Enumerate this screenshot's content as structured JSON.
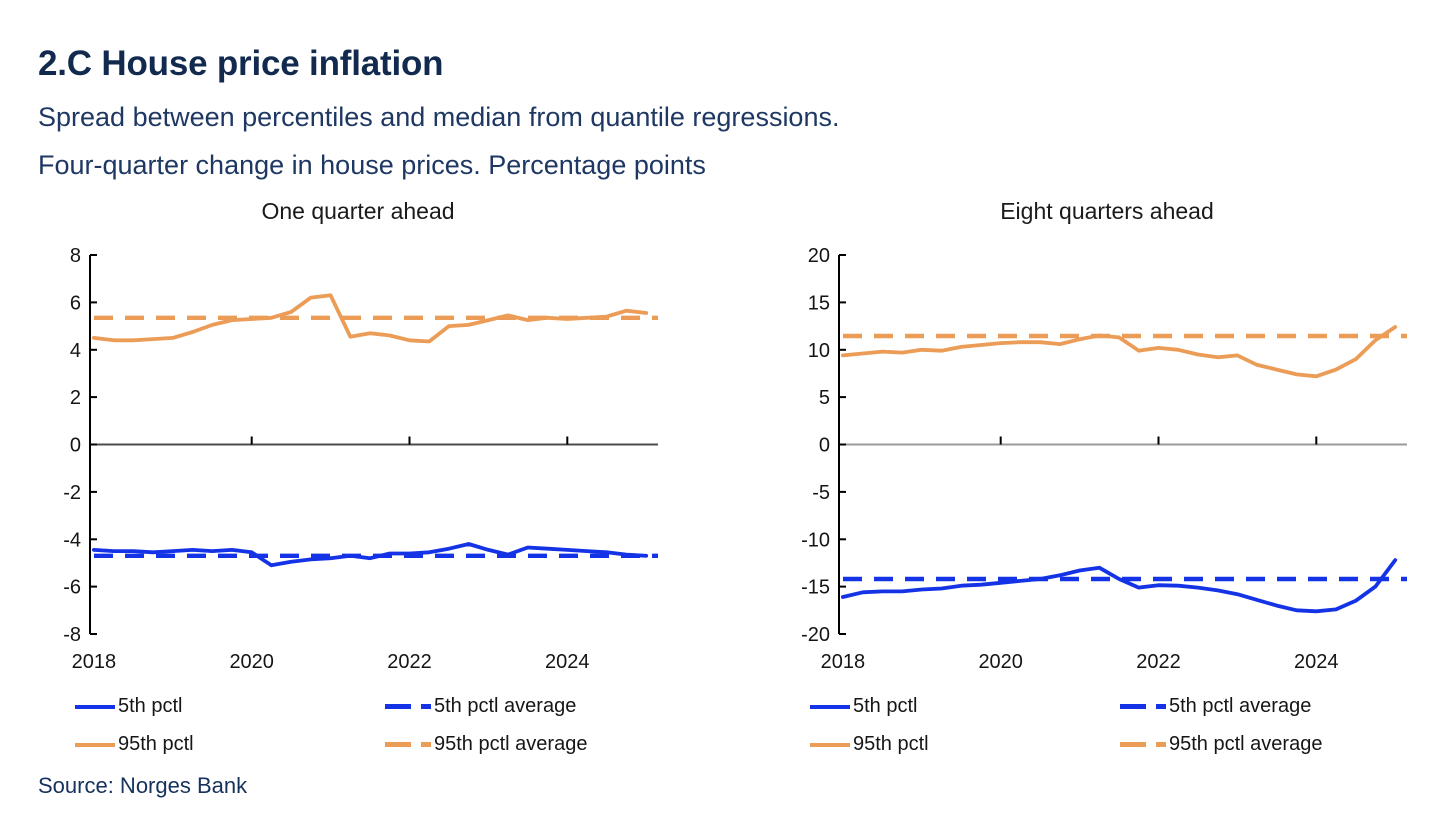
{
  "page": {
    "title": "2.C House price inflation",
    "subtitle1": "Spread between percentiles and median from quantile regressions.",
    "subtitle2": "Four-quarter change in house prices. Percentage points",
    "source": "Source: Norges Bank"
  },
  "colors": {
    "blue": "#1433e6",
    "orange": "#eb9c57",
    "axis": "#000000",
    "tick_text": "#151515"
  },
  "chart_data": [
    {
      "type": "line",
      "title": "One quarter ahead",
      "x_start": 2018,
      "x_step": 0.25,
      "xlim": [
        2017.95,
        2025.15
      ],
      "ylim": [
        -8,
        8
      ],
      "y_ticks": [
        8,
        6,
        4,
        2,
        0,
        -2,
        -4,
        -6,
        -8
      ],
      "y_tick_labels": [
        "8",
        "6",
        "4",
        "2",
        "0",
        "-2",
        "-4",
        "-6",
        "-8"
      ],
      "x_tick_positions": [
        2018,
        2020,
        2022,
        2024
      ],
      "x_tick_labels": [
        "2018",
        "2020",
        "2022",
        "2024"
      ],
      "x_tick_marks": [
        2020,
        2022,
        2024
      ],
      "zero_line": "#4c4c4c",
      "grid": false,
      "legend_position": "bottom",
      "series": [
        {
          "name": "5th pctl",
          "style": "solid",
          "color": "blue",
          "values": [
            -4.45,
            -4.5,
            -4.5,
            -4.55,
            -4.5,
            -4.45,
            -4.5,
            -4.45,
            -4.55,
            -5.1,
            -4.95,
            -4.85,
            -4.8,
            -4.7,
            -4.8,
            -4.6,
            -4.6,
            -4.55,
            -4.4,
            -4.2,
            -4.45,
            -4.65,
            -4.35,
            -4.4,
            -4.45,
            -4.5,
            -4.55,
            -4.65,
            -4.7
          ]
        },
        {
          "name": "5th pctl average",
          "style": "dashed",
          "color": "blue",
          "value": -4.7
        },
        {
          "name": "95th pctl",
          "style": "solid",
          "color": "orange",
          "values": [
            4.5,
            4.4,
            4.4,
            4.45,
            4.5,
            4.75,
            5.05,
            5.25,
            5.3,
            5.35,
            5.6,
            6.2,
            6.3,
            4.55,
            4.7,
            4.6,
            4.4,
            4.35,
            5.0,
            5.05,
            5.25,
            5.45,
            5.25,
            5.35,
            5.3,
            5.35,
            5.4,
            5.65,
            5.55
          ]
        },
        {
          "name": "95th pctl average",
          "style": "dashed",
          "color": "orange",
          "value": 5.35
        }
      ]
    },
    {
      "type": "line",
      "title": "Eight quarters ahead",
      "x_start": 2018,
      "x_step": 0.25,
      "xlim": [
        2017.95,
        2025.15
      ],
      "ylim": [
        -20,
        20
      ],
      "y_ticks": [
        20,
        15,
        10,
        5,
        0,
        -5,
        -10,
        -15,
        -20
      ],
      "y_tick_labels": [
        "20",
        "15",
        "10",
        "5",
        "0",
        "-5",
        "-10",
        "-15",
        "-20"
      ],
      "x_tick_positions": [
        2018,
        2020,
        2022,
        2024
      ],
      "x_tick_labels": [
        "2018",
        "2020",
        "2022",
        "2024"
      ],
      "x_tick_marks": [
        2020,
        2022,
        2024
      ],
      "zero_line": "#9a9a9a",
      "grid": false,
      "legend_position": "bottom",
      "series": [
        {
          "name": "5th pctl",
          "style": "solid",
          "color": "blue",
          "values": [
            -16.1,
            -15.6,
            -15.5,
            -15.5,
            -15.3,
            -15.2,
            -14.9,
            -14.8,
            -14.6,
            -14.4,
            -14.2,
            -13.8,
            -13.3,
            -13.0,
            -14.2,
            -15.1,
            -14.85,
            -14.9,
            -15.1,
            -15.4,
            -15.8,
            -16.4,
            -17.0,
            -17.5,
            -17.6,
            -17.4,
            -16.5,
            -15.0,
            -12.2
          ]
        },
        {
          "name": "5th pctl average",
          "style": "dashed",
          "color": "blue",
          "value": -14.2
        },
        {
          "name": "95th pctl",
          "style": "solid",
          "color": "orange",
          "values": [
            9.4,
            9.6,
            9.8,
            9.7,
            10.0,
            9.9,
            10.3,
            10.5,
            10.7,
            10.8,
            10.8,
            10.6,
            11.1,
            11.5,
            11.3,
            9.9,
            10.2,
            10.0,
            9.5,
            9.2,
            9.4,
            8.4,
            7.9,
            7.4,
            7.2,
            7.9,
            9.0,
            11.0,
            12.4
          ]
        },
        {
          "name": "95th pctl average",
          "style": "dashed",
          "color": "orange",
          "value": 11.45
        }
      ]
    }
  ]
}
